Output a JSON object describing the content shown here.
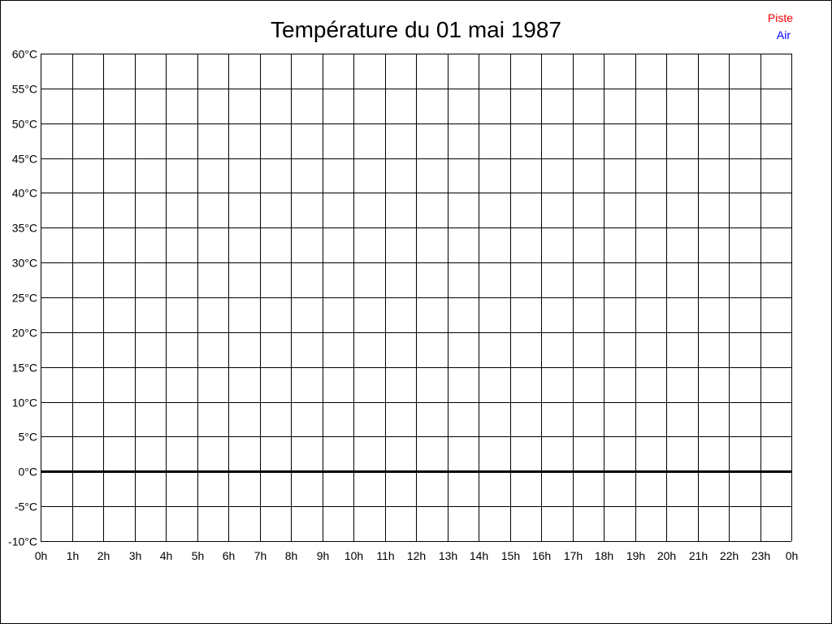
{
  "chart_data": {
    "type": "line",
    "title": "Température du 01 mai 1987",
    "xlabel": "",
    "ylabel": "",
    "x_ticks": [
      "0h",
      "1h",
      "2h",
      "3h",
      "4h",
      "5h",
      "6h",
      "7h",
      "8h",
      "9h",
      "10h",
      "11h",
      "12h",
      "13h",
      "14h",
      "15h",
      "16h",
      "17h",
      "18h",
      "19h",
      "20h",
      "21h",
      "22h",
      "23h",
      "0h"
    ],
    "y_ticks": [
      "-10°C",
      "-5°C",
      "0°C",
      "5°C",
      "10°C",
      "15°C",
      "20°C",
      "25°C",
      "30°C",
      "35°C",
      "40°C",
      "45°C",
      "50°C",
      "55°C",
      "60°C"
    ],
    "xlim": [
      0,
      24
    ],
    "ylim": [
      -10,
      60
    ],
    "y_step": 5,
    "grid": true,
    "zero_line_emphasized": true,
    "legend_position": "top-right",
    "series": [
      {
        "name": "Piste",
        "color": "#ff0000",
        "x": [],
        "y": []
      },
      {
        "name": "Air",
        "color": "#0000ff",
        "x": [],
        "y": []
      }
    ]
  }
}
